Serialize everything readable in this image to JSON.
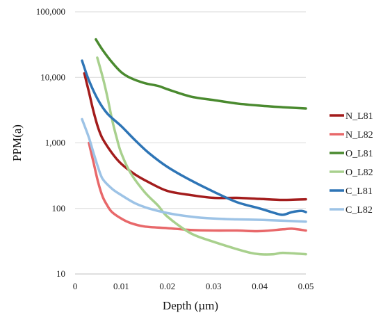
{
  "chart_data": {
    "type": "line",
    "title": "",
    "xlabel": "Depth (µm)",
    "ylabel": "PPM(a)",
    "x_scale": "linear",
    "y_scale": "log",
    "xlim": [
      0,
      0.05
    ],
    "ylim": [
      10,
      100000
    ],
    "x_ticks": [
      "0",
      "0.01",
      "0.02",
      "0.03",
      "0.04",
      "0.05"
    ],
    "y_ticks": [
      "10",
      "100",
      "1,000",
      "10,000",
      "100,000"
    ],
    "grid": "horizontal",
    "legend_position": "right",
    "series": [
      {
        "name": "N_L81",
        "color": "#a31c1c",
        "x": [
          0.002,
          0.003,
          0.004,
          0.005,
          0.006,
          0.008,
          0.01,
          0.013,
          0.016,
          0.02,
          0.025,
          0.03,
          0.035,
          0.04,
          0.045,
          0.05
        ],
        "y": [
          11500,
          6000,
          3000,
          1700,
          1150,
          700,
          480,
          330,
          250,
          185,
          160,
          145,
          145,
          140,
          135,
          138
        ]
      },
      {
        "name": "N_L82",
        "color": "#e8686a",
        "x": [
          0.003,
          0.004,
          0.005,
          0.006,
          0.007,
          0.008,
          0.01,
          0.012,
          0.015,
          0.02,
          0.025,
          0.03,
          0.035,
          0.04,
          0.045,
          0.047,
          0.05
        ],
        "y": [
          1000,
          500,
          250,
          150,
          110,
          88,
          70,
          60,
          53,
          50,
          47,
          46,
          46,
          45,
          48,
          49,
          46
        ]
      },
      {
        "name": "O_L81",
        "color": "#4a8a2f",
        "x": [
          0.0045,
          0.006,
          0.008,
          0.01,
          0.012,
          0.015,
          0.018,
          0.02,
          0.025,
          0.03,
          0.035,
          0.04,
          0.045,
          0.05
        ],
        "y": [
          38000,
          26000,
          17000,
          12000,
          9800,
          8200,
          7400,
          6600,
          5100,
          4500,
          4000,
          3700,
          3500,
          3350
        ]
      },
      {
        "name": "O_L82",
        "color": "#a8d08d",
        "x": [
          0.0048,
          0.006,
          0.007,
          0.008,
          0.009,
          0.01,
          0.012,
          0.015,
          0.018,
          0.02,
          0.025,
          0.03,
          0.035,
          0.038,
          0.04,
          0.043,
          0.045,
          0.05
        ],
        "y": [
          20000,
          10000,
          5000,
          2300,
          1200,
          700,
          350,
          180,
          110,
          75,
          42,
          31,
          24,
          21,
          20,
          20,
          21,
          20
        ]
      },
      {
        "name": "C_L81",
        "color": "#2e75b6",
        "x": [
          0.0015,
          0.003,
          0.005,
          0.007,
          0.01,
          0.013,
          0.016,
          0.02,
          0.025,
          0.03,
          0.035,
          0.04,
          0.043,
          0.045,
          0.047,
          0.049,
          0.05
        ],
        "y": [
          18000,
          9000,
          4500,
          2800,
          1800,
          1100,
          700,
          430,
          270,
          180,
          125,
          100,
          86,
          80,
          88,
          92,
          88
        ]
      },
      {
        "name": "C_L82",
        "color": "#9dc3e6",
        "x": [
          0.0015,
          0.003,
          0.004,
          0.005,
          0.006,
          0.008,
          0.01,
          0.013,
          0.016,
          0.02,
          0.025,
          0.03,
          0.035,
          0.04,
          0.045,
          0.05
        ],
        "y": [
          2300,
          1200,
          700,
          420,
          280,
          200,
          160,
          120,
          100,
          85,
          75,
          70,
          68,
          67,
          65,
          63
        ]
      }
    ]
  }
}
